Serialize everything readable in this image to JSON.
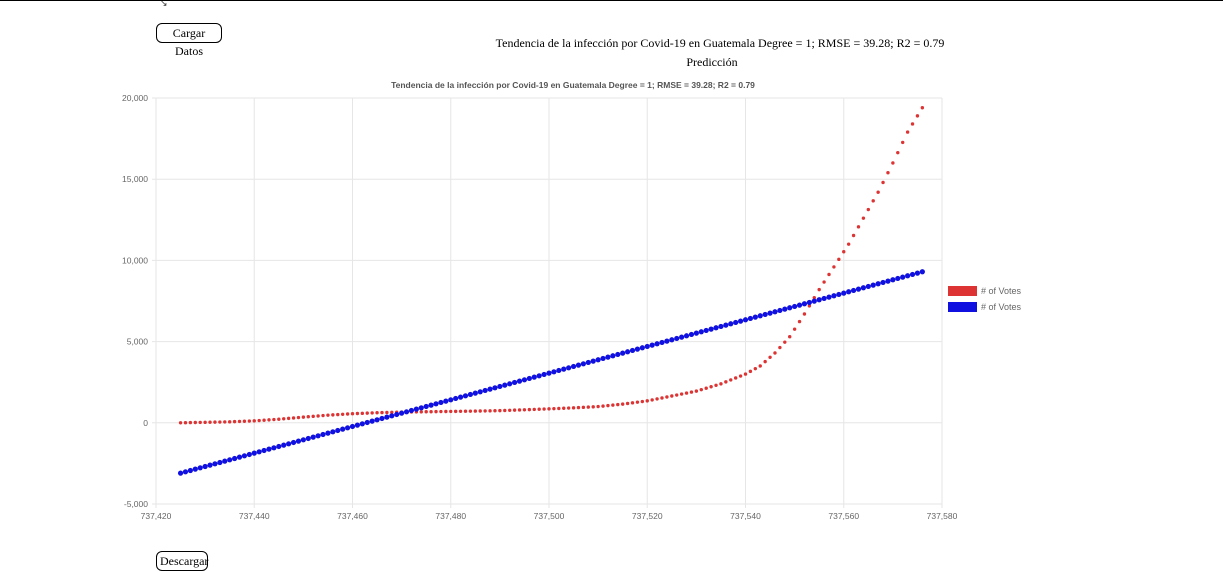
{
  "corner_mark": "↘",
  "buttons": {
    "load_label": "Cargar Datos",
    "download_label": "Descargar"
  },
  "page": {
    "title": "Tendencia de la infección por Covid-19 en Guatemala Degree = 1; RMSE = 39.28; R2 = 0.79",
    "subtitle": "Predicción"
  },
  "colors": {
    "red_series": "#dd3333",
    "blue_series": "#1010e0",
    "grid": "#e6e6e6"
  },
  "chart_data": {
    "type": "scatter",
    "title": "Tendencia de la infección por Covid-19 en Guatemala   Degree = 1; RMSE = 39.28; R2 = 0.79",
    "xlabel": "",
    "ylabel": "",
    "xlim": [
      737420,
      737580
    ],
    "ylim": [
      -5000,
      20000
    ],
    "x_ticks": [
      737420,
      737440,
      737460,
      737480,
      737500,
      737520,
      737540,
      737560,
      737580
    ],
    "y_ticks": [
      -5000,
      0,
      5000,
      10000,
      15000,
      20000
    ],
    "grid": true,
    "legend_position": "right",
    "series": [
      {
        "name": "# of Votes",
        "color": "#dd3333",
        "x_start": 737425,
        "x_end": 737576,
        "points": [
          [
            737425,
            0
          ],
          [
            737430,
            30
          ],
          [
            737435,
            60
          ],
          [
            737440,
            120
          ],
          [
            737445,
            220
          ],
          [
            737450,
            350
          ],
          [
            737455,
            470
          ],
          [
            737460,
            560
          ],
          [
            737465,
            620
          ],
          [
            737470,
            660
          ],
          [
            737475,
            680
          ],
          [
            737480,
            700
          ],
          [
            737485,
            720
          ],
          [
            737490,
            750
          ],
          [
            737495,
            800
          ],
          [
            737500,
            860
          ],
          [
            737505,
            920
          ],
          [
            737510,
            1000
          ],
          [
            737515,
            1150
          ],
          [
            737520,
            1350
          ],
          [
            737525,
            1650
          ],
          [
            737530,
            1950
          ],
          [
            737535,
            2400
          ],
          [
            737540,
            3000
          ],
          [
            737543,
            3500
          ],
          [
            737546,
            4300
          ],
          [
            737549,
            5300
          ],
          [
            737552,
            6700
          ],
          [
            737555,
            8200
          ],
          [
            737558,
            9600
          ],
          [
            737561,
            11000
          ],
          [
            737564,
            12600
          ],
          [
            737567,
            14200
          ],
          [
            737570,
            16000
          ],
          [
            737573,
            17900
          ],
          [
            737576,
            19400
          ]
        ]
      },
      {
        "name": "# of Votes",
        "color": "#1010e0",
        "x_start": 737425,
        "x_end": 737576,
        "y_start": -3100,
        "y_end": 9300
      }
    ]
  }
}
